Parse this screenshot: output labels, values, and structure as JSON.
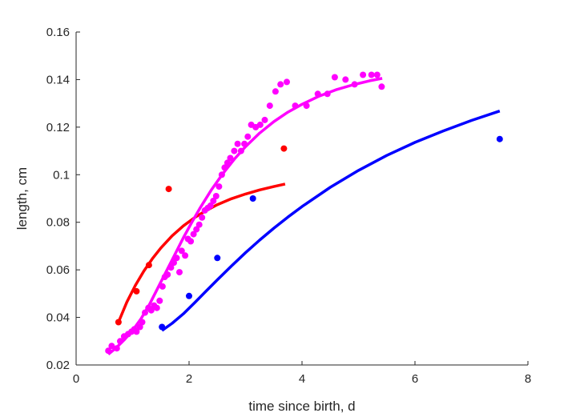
{
  "chart_data": {
    "type": "scatter",
    "title": "",
    "xlabel": "time since birth, d",
    "ylabel": "length, cm",
    "xlim": [
      0,
      8
    ],
    "ylim": [
      0.02,
      0.16
    ],
    "xticks": [
      "0",
      "2",
      "4",
      "6",
      "8"
    ],
    "xtick_values": [
      0,
      2,
      4,
      6,
      8
    ],
    "yticks": [
      "0.02",
      "0.04",
      "0.06",
      "0.08",
      "0.1",
      "0.12",
      "0.14",
      "0.16"
    ],
    "ytick_values": [
      0.02,
      0.04,
      0.06,
      0.08,
      0.1,
      0.12,
      0.14,
      0.16
    ],
    "grid": false,
    "legend": false,
    "series": [
      {
        "color": "#ff0000",
        "points": [
          [
            0.75,
            0.038
          ],
          [
            1.07,
            0.051
          ],
          [
            1.29,
            0.062
          ],
          [
            1.64,
            0.094
          ],
          [
            3.68,
            0.111
          ]
        ],
        "curve": [
          [
            0.75,
            0.038
          ],
          [
            0.9,
            0.0465
          ],
          [
            1.05,
            0.0535
          ],
          [
            1.2,
            0.0595
          ],
          [
            1.35,
            0.0647
          ],
          [
            1.5,
            0.0692
          ],
          [
            1.7,
            0.0743
          ],
          [
            1.9,
            0.0785
          ],
          [
            2.1,
            0.082
          ],
          [
            2.3,
            0.0849
          ],
          [
            2.5,
            0.0874
          ],
          [
            2.75,
            0.0899
          ],
          [
            3.0,
            0.0919
          ],
          [
            3.25,
            0.0936
          ],
          [
            3.5,
            0.095
          ],
          [
            3.7,
            0.0961
          ]
        ]
      },
      {
        "color": "#ff00ff",
        "points": [
          [
            0.57,
            0.026
          ],
          [
            0.63,
            0.028
          ],
          [
            0.72,
            0.027
          ],
          [
            0.78,
            0.03
          ],
          [
            0.85,
            0.032
          ],
          [
            0.92,
            0.033
          ],
          [
            0.98,
            0.034
          ],
          [
            1.03,
            0.035
          ],
          [
            1.07,
            0.034
          ],
          [
            1.13,
            0.036
          ],
          [
            1.17,
            0.038
          ],
          [
            1.22,
            0.042
          ],
          [
            1.28,
            0.044
          ],
          [
            1.33,
            0.043
          ],
          [
            1.38,
            0.045
          ],
          [
            1.43,
            0.044
          ],
          [
            1.48,
            0.047
          ],
          [
            1.53,
            0.053
          ],
          [
            1.57,
            0.057
          ],
          [
            1.62,
            0.058
          ],
          [
            1.68,
            0.061
          ],
          [
            1.73,
            0.063
          ],
          [
            1.78,
            0.065
          ],
          [
            1.83,
            0.059
          ],
          [
            1.87,
            0.068
          ],
          [
            1.93,
            0.066
          ],
          [
            1.98,
            0.073
          ],
          [
            2.03,
            0.072
          ],
          [
            2.08,
            0.075
          ],
          [
            2.13,
            0.077
          ],
          [
            2.18,
            0.079
          ],
          [
            2.23,
            0.082
          ],
          [
            2.28,
            0.085
          ],
          [
            2.33,
            0.086
          ],
          [
            2.38,
            0.087
          ],
          [
            2.43,
            0.089
          ],
          [
            2.48,
            0.091
          ],
          [
            2.53,
            0.095
          ],
          [
            2.58,
            0.1
          ],
          [
            2.63,
            0.103
          ],
          [
            2.68,
            0.105
          ],
          [
            2.73,
            0.107
          ],
          [
            2.8,
            0.11
          ],
          [
            2.86,
            0.113
          ],
          [
            2.92,
            0.11
          ],
          [
            2.98,
            0.113
          ],
          [
            3.04,
            0.116
          ],
          [
            3.1,
            0.121
          ],
          [
            3.18,
            0.12
          ],
          [
            3.26,
            0.121
          ],
          [
            3.34,
            0.123
          ],
          [
            3.43,
            0.129
          ],
          [
            3.53,
            0.135
          ],
          [
            3.62,
            0.138
          ],
          [
            3.73,
            0.139
          ],
          [
            3.88,
            0.129
          ],
          [
            4.08,
            0.129
          ],
          [
            4.28,
            0.134
          ],
          [
            4.45,
            0.134
          ],
          [
            4.58,
            0.141
          ],
          [
            4.77,
            0.14
          ],
          [
            4.93,
            0.138
          ],
          [
            5.08,
            0.142
          ],
          [
            5.23,
            0.142
          ],
          [
            5.33,
            0.142
          ],
          [
            5.41,
            0.137
          ]
        ],
        "curve": [
          [
            0.57,
            0.0245
          ],
          [
            0.7,
            0.027
          ],
          [
            0.85,
            0.0305
          ],
          [
            1.0,
            0.0345
          ],
          [
            1.15,
            0.0395
          ],
          [
            1.3,
            0.0455
          ],
          [
            1.45,
            0.0525
          ],
          [
            1.6,
            0.0595
          ],
          [
            1.75,
            0.0665
          ],
          [
            1.9,
            0.0735
          ],
          [
            2.05,
            0.08
          ],
          [
            2.2,
            0.0862
          ],
          [
            2.4,
            0.0938
          ],
          [
            2.6,
            0.1005
          ],
          [
            2.8,
            0.1065
          ],
          [
            3.0,
            0.1118
          ],
          [
            3.25,
            0.1175
          ],
          [
            3.5,
            0.1223
          ],
          [
            3.75,
            0.1263
          ],
          [
            4.0,
            0.1296
          ],
          [
            4.3,
            0.133
          ],
          [
            4.6,
            0.1357
          ],
          [
            4.9,
            0.1378
          ],
          [
            5.2,
            0.1395
          ],
          [
            5.42,
            0.1405
          ]
        ]
      },
      {
        "color": "#0000ff",
        "points": [
          [
            1.52,
            0.036
          ],
          [
            2.0,
            0.049
          ],
          [
            2.5,
            0.065
          ],
          [
            3.13,
            0.09
          ],
          [
            7.5,
            0.115
          ]
        ],
        "curve": [
          [
            1.52,
            0.0345
          ],
          [
            1.7,
            0.0375
          ],
          [
            1.9,
            0.0415
          ],
          [
            2.1,
            0.0462
          ],
          [
            2.3,
            0.051
          ],
          [
            2.5,
            0.0558
          ],
          [
            2.75,
            0.0616
          ],
          [
            3.0,
            0.0672
          ],
          [
            3.25,
            0.0725
          ],
          [
            3.5,
            0.0775
          ],
          [
            3.75,
            0.0822
          ],
          [
            4.0,
            0.0866
          ],
          [
            4.5,
            0.0947
          ],
          [
            5.0,
            0.1018
          ],
          [
            5.5,
            0.1081
          ],
          [
            6.0,
            0.1136
          ],
          [
            6.5,
            0.1184
          ],
          [
            7.0,
            0.1228
          ],
          [
            7.5,
            0.1268
          ]
        ]
      }
    ]
  }
}
